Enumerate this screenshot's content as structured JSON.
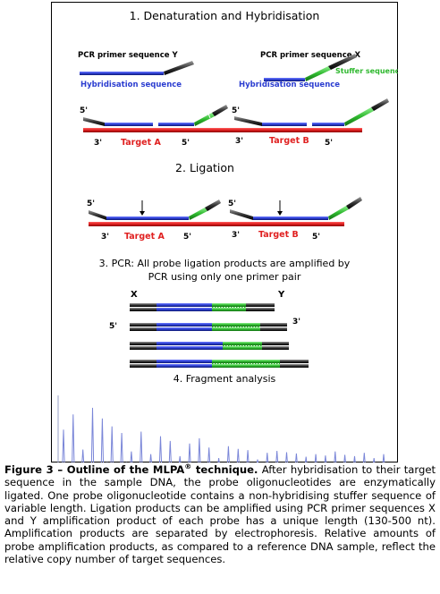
{
  "step1": {
    "title": "1. Denaturation and Hybridisation",
    "primer_y_label": "PCR primer sequence Y",
    "hyb_label_left": "Hybridisation sequence",
    "primer_x_label": "PCR primer sequence X",
    "stuffer_label": "Stuffer sequence",
    "hyb_label_right": "Hybridisation sequence",
    "five_prime_left": "5'",
    "five_prime_right": "5'",
    "three_prime_a": "3'",
    "target_a": "Target A",
    "five_prime_a": "5'",
    "three_prime_b": "3'",
    "target_b": "Target B",
    "five_prime_b": "5'"
  },
  "step2": {
    "title": "2. Ligation",
    "five_prime_left": "5'",
    "five_prime_right": "5'",
    "three_prime_a": "3'",
    "target_a": "Target A",
    "five_prime_a": "5'",
    "three_prime_b": "3'",
    "target_b": "Target B",
    "five_prime_b": "5'"
  },
  "step3": {
    "title_line1": "3. PCR: All probe ligation products are amplified by",
    "title_line2": "PCR using only one primer pair",
    "x_label": "X",
    "y_label": "Y",
    "five_prime": "5'",
    "three_prime": "3'"
  },
  "step4": {
    "title": "4. Fragment analysis",
    "peaks": [
      0.55,
      0.78,
      0.25,
      0.88,
      0.72,
      0.6,
      0.5,
      0.22,
      0.52,
      0.18,
      0.45,
      0.38,
      0.15,
      0.34,
      0.42,
      0.28,
      0.12,
      0.3,
      0.26,
      0.24,
      0.1,
      0.2,
      0.23,
      0.21,
      0.19,
      0.14,
      0.18,
      0.16,
      0.22,
      0.17,
      0.15,
      0.2,
      0.12,
      0.18
    ]
  },
  "colors": {
    "target": "#dd1c1c",
    "hyb": "#2b3dd0",
    "stuffer": "#2eb82e",
    "primer": "#333333",
    "target_text": "#e02020",
    "trace": "#7a86d8"
  },
  "caption": {
    "title_prefix": "Figure 3 – Outline of the MLPA",
    "title_sup": "®",
    "title_suffix": " technique.",
    "text": " After hybridisation to their target sequence in the sample DNA, the probe oligonucleotides are enzymatically ligated. One probe oligonucleotide contains a non-hybridising stuffer sequence of variable length. Ligation products can be amplified using PCR primer sequences X and Y amplification product of each probe has a unique length (130-500 nt). Amplification products are separated by electrophoresis. Relative amounts of probe amplification products, as compared to a reference DNA sample, reflect the relative copy number of target sequences."
  }
}
